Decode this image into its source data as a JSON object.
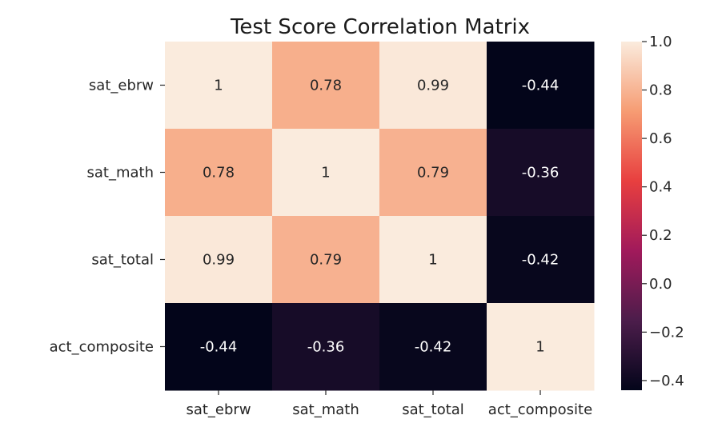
{
  "chart_data": {
    "type": "heatmap",
    "title": "Test Score Correlation Matrix",
    "x_labels": [
      "sat_ebrw",
      "sat_math",
      "sat_total",
      "act_composite"
    ],
    "y_labels": [
      "sat_ebrw",
      "sat_math",
      "sat_total",
      "act_composite"
    ],
    "values": [
      [
        1,
        0.78,
        0.99,
        -0.44
      ],
      [
        0.78,
        1,
        0.79,
        -0.36
      ],
      [
        0.99,
        0.79,
        1,
        -0.42
      ],
      [
        -0.44,
        -0.36,
        -0.42,
        1
      ]
    ],
    "annotations": [
      [
        "1",
        "0.78",
        "0.99",
        "-0.44"
      ],
      [
        "0.78",
        "1",
        "0.79",
        "-0.36"
      ],
      [
        "0.99",
        "0.79",
        "1",
        "-0.42"
      ],
      [
        "-0.44",
        "-0.36",
        "-0.42",
        "1"
      ]
    ],
    "colorbar": {
      "range": [
        -0.44,
        1.0
      ],
      "ticks": [
        1.0,
        0.8,
        0.6,
        0.4,
        0.2,
        0.0,
        -0.2,
        -0.4
      ],
      "tick_labels": [
        "1.0",
        "0.8",
        "0.6",
        "0.4",
        "0.2",
        "0.0",
        "−0.2",
        "−0.4"
      ]
    },
    "colormap": "rocket",
    "colormap_stops": [
      "#03051a",
      "#4c1d4b",
      "#a11a5b",
      "#e83f3f",
      "#f69c73",
      "#faebdd"
    ]
  }
}
